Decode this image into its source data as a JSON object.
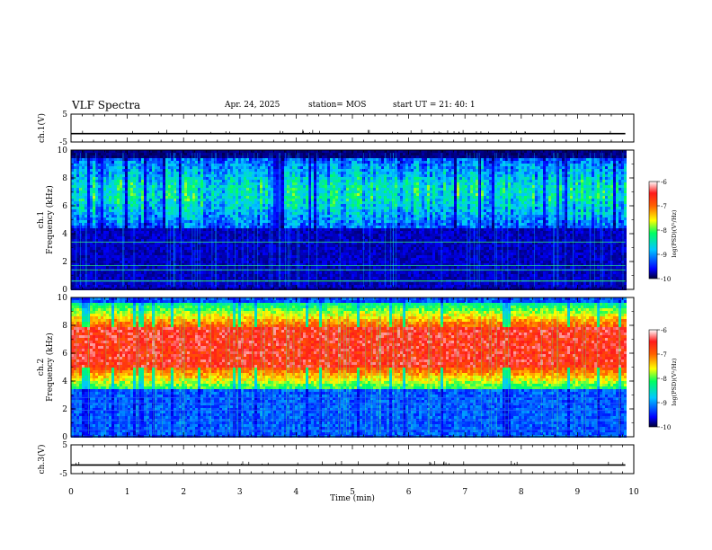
{
  "header": {
    "title": "VLF Spectra",
    "date": "Apr. 24, 2025",
    "station": "station= MOS",
    "start": "start  UT  =   21: 40: 1"
  },
  "chart_data": [
    {
      "type": "line",
      "id": "ch1",
      "ylabel": "ch.1(V)",
      "ylim": [
        -5,
        5
      ],
      "yticks": [
        "5",
        "-5"
      ],
      "x": [
        0,
        9.85
      ],
      "series": [
        {
          "values": [
            -2,
            -2
          ]
        }
      ]
    },
    {
      "type": "heatmap",
      "id": "spec1",
      "ylabel": [
        "ch.1",
        "Frequency  (kHz)"
      ],
      "ylim": [
        0,
        10
      ],
      "yticks": [
        "0",
        "2",
        "4",
        "6",
        "8",
        "10"
      ],
      "xlim": [
        0,
        10
      ],
      "data_xmax": 9.85,
      "band_khz": [
        4.5,
        9.5
      ],
      "lines_khz": [
        0.6,
        1.4,
        1.7,
        3.4
      ],
      "colorbar": {
        "label": "log(PSD)(V²/Hz)",
        "ticks": [
          "-6",
          "-7",
          "-8",
          "-9",
          "-10"
        ],
        "range": [
          -10,
          -6
        ]
      }
    },
    {
      "type": "heatmap",
      "id": "spec2",
      "ylabel": [
        "ch.2",
        "Frequency  (kHz)"
      ],
      "ylim": [
        0,
        10
      ],
      "yticks": [
        "0",
        "2",
        "4",
        "6",
        "8",
        "10"
      ],
      "xlim": [
        0,
        10
      ],
      "data_xmax": 9.85,
      "band_khz": [
        3.5,
        9.8
      ],
      "core_khz": [
        5.0,
        8.0
      ],
      "lines_khz": [
        0.5,
        1.2,
        1.9,
        2.4,
        2.8
      ],
      "colorbar": {
        "label": "log(PSD)(V²/Hz)",
        "ticks": [
          "-6",
          "-7",
          "-8",
          "-9",
          "-10"
        ],
        "range": [
          -10,
          -6
        ]
      }
    },
    {
      "type": "line",
      "id": "ch3",
      "ylabel": "ch.3(V)",
      "ylim": [
        -5,
        5
      ],
      "yticks": [
        "5",
        "-5"
      ],
      "x": [
        0,
        9.85
      ],
      "series": [
        {
          "values": [
            -2,
            -2
          ]
        }
      ]
    }
  ],
  "xaxis": {
    "label": "Time  (min)",
    "ticks": [
      "0",
      "1",
      "2",
      "3",
      "4",
      "5",
      "6",
      "7",
      "8",
      "9",
      "10"
    ],
    "range": [
      0,
      10
    ]
  }
}
